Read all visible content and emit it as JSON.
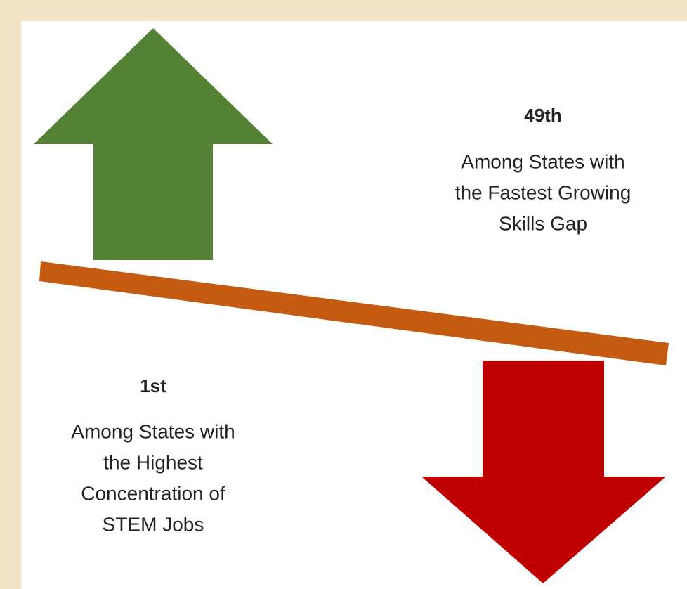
{
  "rankings": [
    {
      "rank": "49th",
      "description": [
        "Among States with",
        "the Fastest Growing",
        "Skills Gap"
      ]
    },
    {
      "rank": "1st",
      "description": [
        "Among States with",
        "the Highest",
        "Concentration of",
        "STEM Jobs"
      ]
    }
  ]
}
